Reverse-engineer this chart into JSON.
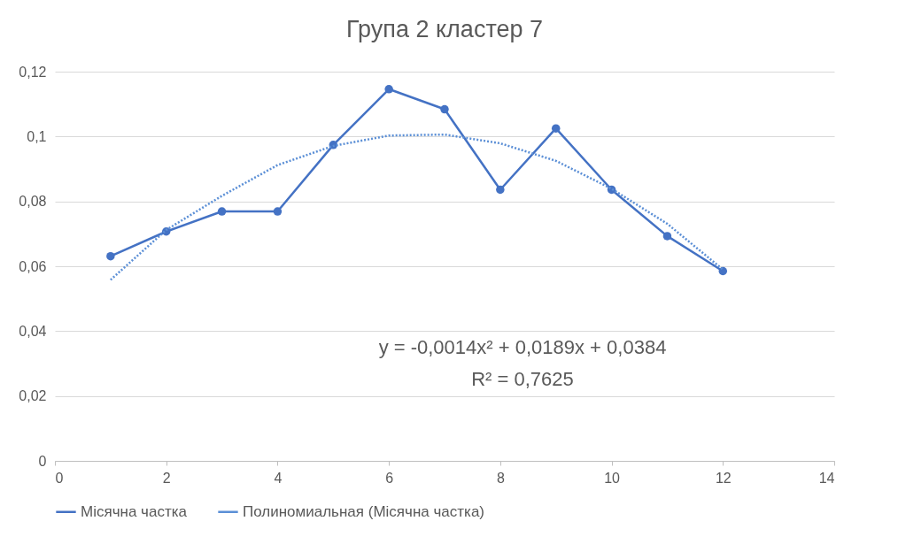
{
  "chart_data": {
    "type": "line",
    "title": "Група 2 кластер 7",
    "x": [
      1,
      2,
      3,
      4,
      5,
      6,
      7,
      8,
      9,
      10,
      11,
      12
    ],
    "series": [
      {
        "name": "Місячна частка",
        "color": "#4472c4",
        "marker": "circle",
        "line_style": "solid",
        "values": [
          0.0631,
          0.0707,
          0.0769,
          0.0769,
          0.0974,
          0.1146,
          0.1084,
          0.0836,
          0.1025,
          0.0836,
          0.0693,
          0.0585
        ]
      },
      {
        "name": "Полиномиальная (Місячна частка)",
        "type": "line",
        "color": "#5b8fd6",
        "marker": "none",
        "line_style": "dotted",
        "x": [
          1,
          2,
          3,
          4,
          5,
          6,
          7,
          8,
          9,
          10,
          11,
          12
        ],
        "values": [
          0.0558,
          0.0712,
          0.0817,
          0.0912,
          0.0971,
          0.1003,
          0.1006,
          0.0979,
          0.0925,
          0.0839,
          0.0731,
          0.059
        ]
      }
    ],
    "xlim": [
      0,
      14
    ],
    "xticks": [
      0,
      2,
      4,
      6,
      8,
      10,
      12,
      14
    ],
    "ylim": [
      0,
      0.12
    ],
    "yticks": [
      0,
      {
        "value": 0.02,
        "label": "0,02"
      },
      {
        "value": 0.04,
        "label": "0,04"
      },
      {
        "value": 0.06,
        "label": "0,06"
      },
      {
        "value": 0.08,
        "label": "0,08"
      },
      {
        "value": 0.1,
        "label": "0,1"
      },
      {
        "value": 0.12,
        "label": "0,12"
      }
    ],
    "grid": "y",
    "legend": "bottom",
    "annotations": [
      "y = -0,0014x² + 0,0189x + 0,0384",
      "R² = 0,7625"
    ]
  }
}
